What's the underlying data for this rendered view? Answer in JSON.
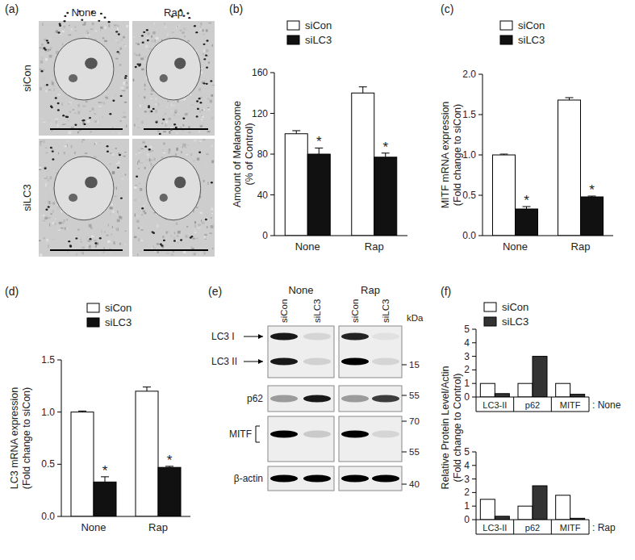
{
  "chart_data": [
    {
      "type": "bar",
      "y_label": [
        "Amount of Melanosome",
        "(% of Control)"
      ],
      "categories": [
        "None",
        "Rap"
      ],
      "series": [
        {
          "name": "siCon",
          "color": "#ffffff",
          "values": [
            100,
            140
          ],
          "errors": [
            3,
            6
          ]
        },
        {
          "name": "siLC3",
          "color": "#111111",
          "values": [
            80,
            77
          ],
          "errors": [
            6,
            4
          ],
          "significance": [
            "*",
            "*"
          ]
        }
      ],
      "ylim": [
        0,
        160
      ],
      "yticks": [
        0,
        40,
        80,
        120,
        160
      ],
      "legend": "top"
    },
    {
      "type": "bar",
      "y_label": [
        "MITF mRNA expression",
        "(Fold change to siCon)"
      ],
      "categories": [
        "None",
        "Rap"
      ],
      "series": [
        {
          "name": "siCon",
          "color": "#ffffff",
          "values": [
            1.0,
            1.68
          ],
          "errors": [
            0.01,
            0.03
          ]
        },
        {
          "name": "siLC3",
          "color": "#111111",
          "values": [
            0.33,
            0.48
          ],
          "errors": [
            0.03,
            0.01
          ],
          "significance": [
            "*",
            "*"
          ]
        }
      ],
      "ylim": [
        0,
        2
      ],
      "yticks": [
        {
          "value": 0,
          "label": "0.0"
        },
        0.5,
        {
          "value": 1,
          "label": "1.0"
        },
        1.5,
        {
          "value": 2,
          "label": "2.0"
        }
      ],
      "legend": "top"
    },
    {
      "type": "bar",
      "y_label": [
        "LC3 mRNA expression",
        "(Fold change to siCon)"
      ],
      "categories": [
        "None",
        "Rap"
      ],
      "series": [
        {
          "name": "siCon",
          "color": "#ffffff",
          "values": [
            1.0,
            1.2
          ],
          "errors": [
            0.01,
            0.04
          ]
        },
        {
          "name": "siLC3",
          "color": "#111111",
          "values": [
            0.33,
            0.47
          ],
          "errors": [
            0.05,
            0.01
          ],
          "significance": [
            "*",
            "*"
          ]
        }
      ],
      "ylim": [
        0,
        1.5
      ],
      "yticks": [
        {
          "value": 0,
          "label": "0.0"
        },
        0.5,
        {
          "value": 1,
          "label": "1.0"
        },
        1.5
      ],
      "legend": "top"
    },
    {
      "type": "bar",
      "y_label": [
        "Relative Protein Level/Actin",
        "(Fold change to Control)"
      ],
      "categories": [
        "LC3-II",
        "p62",
        "MITF"
      ],
      "annotation": ": None",
      "series": [
        {
          "name": "siCon",
          "color": "#ffffff",
          "values": [
            1,
            1,
            1
          ]
        },
        {
          "name": "siLC3",
          "color": "#333333",
          "values": [
            0.25,
            3.0,
            0.2
          ]
        }
      ],
      "ylim": [
        0,
        5
      ],
      "yticks": [
        0,
        1,
        2,
        3,
        4,
        5
      ],
      "legend": "upper left"
    },
    {
      "type": "bar",
      "categories": [
        "LC3-II",
        "p62",
        "MITF"
      ],
      "annotation": ": Rap",
      "series": [
        {
          "color": "#ffffff",
          "values": [
            1.5,
            1.0,
            1.8
          ]
        },
        {
          "color": "#333333",
          "values": [
            0.25,
            2.5,
            0.1
          ]
        }
      ],
      "ylim": [
        0,
        5
      ],
      "yticks": [
        0,
        1,
        2,
        3,
        4,
        5
      ]
    }
  ],
  "panel_labels": [
    "(a)",
    "(b)",
    "(c)",
    "(d)",
    "(e)",
    "(f)"
  ],
  "image_panel": {
    "columns": [
      "None",
      "Rap"
    ],
    "rows": [
      "siCon",
      "siLC3"
    ]
  },
  "blot_panel": {
    "columns": [
      "None",
      "Rap"
    ],
    "lanes": [
      "siCon",
      "siLC3",
      "siCon",
      "siLC3"
    ],
    "unit": "kDa",
    "rows": [
      {
        "labels": [
          "LC3 I",
          "LC3 II"
        ],
        "markers": [
          15
        ]
      },
      {
        "labels": [
          "p62"
        ],
        "markers": [
          55
        ]
      },
      {
        "labels": [
          "MITF"
        ],
        "markers": [
          70,
          55
        ]
      },
      {
        "labels": [
          "β-actin"
        ],
        "markers": [
          40
        ]
      }
    ]
  }
}
